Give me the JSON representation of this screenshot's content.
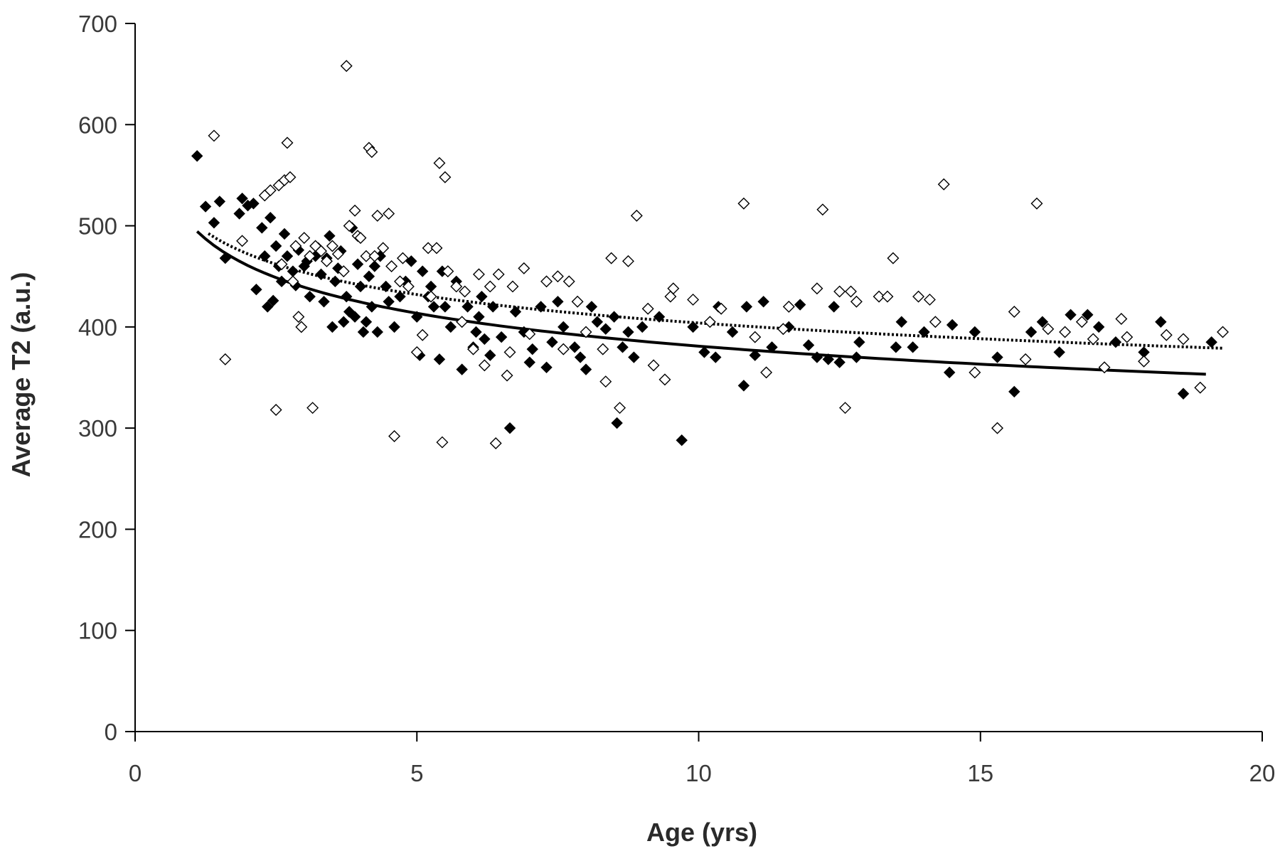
{
  "chart_data": {
    "type": "scatter",
    "title": "",
    "xlabel": "Age (yrs)",
    "ylabel": "Average T2 (a.u.)",
    "xlim": [
      0,
      20
    ],
    "ylim": [
      0,
      700
    ],
    "x_ticks": [
      0,
      5,
      10,
      15,
      20
    ],
    "y_ticks": [
      0,
      100,
      200,
      300,
      400,
      500,
      600,
      700
    ],
    "x_tick_labels": [
      "0",
      "5",
      "10",
      "15",
      "20"
    ],
    "y_tick_labels": [
      "0",
      "100",
      "200",
      "300",
      "400",
      "500",
      "600",
      "700"
    ],
    "grid": false,
    "legend": "none",
    "series": [
      {
        "marker": "filled-diamond",
        "color": "#000000",
        "points": [
          [
            1.1,
            569
          ],
          [
            1.25,
            519
          ],
          [
            1.4,
            503
          ],
          [
            1.5,
            524
          ],
          [
            1.6,
            468
          ],
          [
            1.85,
            512
          ],
          [
            1.9,
            527
          ],
          [
            2.0,
            520
          ],
          [
            2.1,
            522
          ],
          [
            2.15,
            437
          ],
          [
            2.25,
            498
          ],
          [
            2.3,
            470
          ],
          [
            2.35,
            420
          ],
          [
            2.4,
            508
          ],
          [
            2.45,
            426
          ],
          [
            2.5,
            480
          ],
          [
            2.55,
            460
          ],
          [
            2.6,
            445
          ],
          [
            2.65,
            492
          ],
          [
            2.7,
            470
          ],
          [
            2.8,
            455
          ],
          [
            2.85,
            441
          ],
          [
            2.9,
            476
          ],
          [
            3.0,
            460
          ],
          [
            3.05,
            465
          ],
          [
            3.1,
            430
          ],
          [
            3.2,
            470
          ],
          [
            3.25,
            478
          ],
          [
            3.3,
            452
          ],
          [
            3.35,
            425
          ],
          [
            3.4,
            468
          ],
          [
            3.45,
            490
          ],
          [
            3.5,
            400
          ],
          [
            3.55,
            445
          ],
          [
            3.6,
            458
          ],
          [
            3.65,
            475
          ],
          [
            3.7,
            405
          ],
          [
            3.75,
            430
          ],
          [
            3.8,
            415
          ],
          [
            3.85,
            498
          ],
          [
            3.9,
            410
          ],
          [
            3.95,
            462
          ],
          [
            4.0,
            440
          ],
          [
            4.05,
            395
          ],
          [
            4.1,
            405
          ],
          [
            4.15,
            450
          ],
          [
            4.2,
            420
          ],
          [
            4.25,
            460
          ],
          [
            4.3,
            395
          ],
          [
            4.35,
            470
          ],
          [
            4.45,
            440
          ],
          [
            4.5,
            425
          ],
          [
            4.55,
            460
          ],
          [
            4.6,
            400
          ],
          [
            4.7,
            430
          ],
          [
            4.8,
            445
          ],
          [
            4.9,
            465
          ],
          [
            5.0,
            410
          ],
          [
            5.05,
            372
          ],
          [
            5.1,
            455
          ],
          [
            5.2,
            430
          ],
          [
            5.25,
            440
          ],
          [
            5.3,
            420
          ],
          [
            5.4,
            368
          ],
          [
            5.45,
            455
          ],
          [
            5.5,
            420
          ],
          [
            5.6,
            400
          ],
          [
            5.7,
            445
          ],
          [
            5.8,
            358
          ],
          [
            5.9,
            420
          ],
          [
            6.0,
            380
          ],
          [
            6.05,
            395
          ],
          [
            6.1,
            410
          ],
          [
            6.15,
            430
          ],
          [
            6.2,
            388
          ],
          [
            6.3,
            372
          ],
          [
            6.35,
            420
          ],
          [
            6.5,
            390
          ],
          [
            6.65,
            300
          ],
          [
            6.75,
            415
          ],
          [
            6.9,
            395
          ],
          [
            7.0,
            365
          ],
          [
            7.05,
            378
          ],
          [
            7.2,
            420
          ],
          [
            7.3,
            360
          ],
          [
            7.4,
            385
          ],
          [
            7.5,
            425
          ],
          [
            7.6,
            400
          ],
          [
            7.8,
            380
          ],
          [
            7.9,
            370
          ],
          [
            8.0,
            358
          ],
          [
            8.1,
            420
          ],
          [
            8.2,
            405
          ],
          [
            8.35,
            398
          ],
          [
            8.5,
            410
          ],
          [
            8.55,
            305
          ],
          [
            8.65,
            380
          ],
          [
            8.75,
            395
          ],
          [
            8.85,
            370
          ],
          [
            9.0,
            400
          ],
          [
            9.3,
            410
          ],
          [
            9.7,
            288
          ],
          [
            9.9,
            400
          ],
          [
            10.1,
            375
          ],
          [
            10.3,
            370
          ],
          [
            10.35,
            420
          ],
          [
            10.6,
            395
          ],
          [
            10.8,
            342
          ],
          [
            10.85,
            420
          ],
          [
            11.0,
            372
          ],
          [
            11.15,
            425
          ],
          [
            11.3,
            380
          ],
          [
            11.6,
            400
          ],
          [
            11.8,
            422
          ],
          [
            11.95,
            382
          ],
          [
            12.1,
            370
          ],
          [
            12.3,
            368
          ],
          [
            12.4,
            420
          ],
          [
            12.5,
            365
          ],
          [
            12.8,
            370
          ],
          [
            12.85,
            385
          ],
          [
            13.2,
            430
          ],
          [
            13.5,
            380
          ],
          [
            13.6,
            405
          ],
          [
            13.8,
            380
          ],
          [
            14.0,
            395
          ],
          [
            14.45,
            355
          ],
          [
            14.5,
            402
          ],
          [
            14.9,
            395
          ],
          [
            15.3,
            370
          ],
          [
            15.6,
            336
          ],
          [
            15.9,
            395
          ],
          [
            16.1,
            405
          ],
          [
            16.4,
            375
          ],
          [
            16.6,
            412
          ],
          [
            16.9,
            412
          ],
          [
            17.1,
            400
          ],
          [
            17.4,
            385
          ],
          [
            17.9,
            375
          ],
          [
            18.2,
            405
          ],
          [
            18.6,
            334
          ],
          [
            19.1,
            385
          ]
        ]
      },
      {
        "marker": "open-diamond",
        "color": "#000000",
        "points": [
          [
            1.4,
            589
          ],
          [
            1.6,
            368
          ],
          [
            1.9,
            485
          ],
          [
            2.3,
            530
          ],
          [
            2.4,
            535
          ],
          [
            2.5,
            318
          ],
          [
            2.55,
            540
          ],
          [
            2.6,
            462
          ],
          [
            2.65,
            545
          ],
          [
            2.7,
            582
          ],
          [
            2.75,
            548
          ],
          [
            2.8,
            445
          ],
          [
            2.85,
            480
          ],
          [
            2.9,
            410
          ],
          [
            2.95,
            400
          ],
          [
            3.0,
            488
          ],
          [
            3.1,
            470
          ],
          [
            3.15,
            320
          ],
          [
            3.2,
            480
          ],
          [
            3.3,
            475
          ],
          [
            3.4,
            465
          ],
          [
            3.5,
            480
          ],
          [
            3.6,
            472
          ],
          [
            3.7,
            455
          ],
          [
            3.75,
            658
          ],
          [
            3.8,
            500
          ],
          [
            3.9,
            515
          ],
          [
            3.95,
            490
          ],
          [
            4.0,
            488
          ],
          [
            4.1,
            470
          ],
          [
            4.15,
            577
          ],
          [
            4.2,
            573
          ],
          [
            4.25,
            470
          ],
          [
            4.3,
            510
          ],
          [
            4.4,
            478
          ],
          [
            4.5,
            512
          ],
          [
            4.55,
            460
          ],
          [
            4.6,
            292
          ],
          [
            4.7,
            445
          ],
          [
            4.75,
            468
          ],
          [
            4.85,
            440
          ],
          [
            5.0,
            375
          ],
          [
            5.1,
            392
          ],
          [
            5.2,
            478
          ],
          [
            5.25,
            430
          ],
          [
            5.35,
            478
          ],
          [
            5.4,
            562
          ],
          [
            5.45,
            286
          ],
          [
            5.5,
            548
          ],
          [
            5.55,
            455
          ],
          [
            5.7,
            440
          ],
          [
            5.8,
            405
          ],
          [
            5.85,
            435
          ],
          [
            6.0,
            378
          ],
          [
            6.1,
            452
          ],
          [
            6.2,
            362
          ],
          [
            6.3,
            440
          ],
          [
            6.4,
            285
          ],
          [
            6.45,
            452
          ],
          [
            6.6,
            352
          ],
          [
            6.65,
            375
          ],
          [
            6.7,
            440
          ],
          [
            6.9,
            458
          ],
          [
            7.0,
            393
          ],
          [
            7.3,
            445
          ],
          [
            7.5,
            450
          ],
          [
            7.6,
            378
          ],
          [
            7.7,
            445
          ],
          [
            7.85,
            425
          ],
          [
            8.0,
            395
          ],
          [
            8.3,
            378
          ],
          [
            8.35,
            346
          ],
          [
            8.45,
            468
          ],
          [
            8.6,
            320
          ],
          [
            8.75,
            465
          ],
          [
            8.9,
            510
          ],
          [
            9.1,
            418
          ],
          [
            9.2,
            362
          ],
          [
            9.4,
            348
          ],
          [
            9.5,
            430
          ],
          [
            9.55,
            438
          ],
          [
            9.9,
            427
          ],
          [
            10.2,
            405
          ],
          [
            10.4,
            418
          ],
          [
            10.8,
            522
          ],
          [
            11.0,
            390
          ],
          [
            11.2,
            355
          ],
          [
            11.5,
            398
          ],
          [
            11.6,
            420
          ],
          [
            12.1,
            438
          ],
          [
            12.2,
            516
          ],
          [
            12.5,
            435
          ],
          [
            12.6,
            320
          ],
          [
            12.7,
            435
          ],
          [
            12.8,
            425
          ],
          [
            13.2,
            430
          ],
          [
            13.35,
            430
          ],
          [
            13.45,
            468
          ],
          [
            13.9,
            430
          ],
          [
            14.1,
            427
          ],
          [
            14.2,
            405
          ],
          [
            14.35,
            541
          ],
          [
            14.9,
            355
          ],
          [
            15.3,
            300
          ],
          [
            15.6,
            415
          ],
          [
            15.8,
            368
          ],
          [
            16.0,
            522
          ],
          [
            16.2,
            398
          ],
          [
            16.5,
            395
          ],
          [
            16.8,
            405
          ],
          [
            17.0,
            388
          ],
          [
            17.2,
            360
          ],
          [
            17.5,
            408
          ],
          [
            17.6,
            390
          ],
          [
            17.9,
            366
          ],
          [
            18.3,
            392
          ],
          [
            18.6,
            388
          ],
          [
            18.9,
            340
          ],
          [
            19.3,
            395
          ]
        ]
      }
    ],
    "trendlines": [
      {
        "style": "solid",
        "color": "#000000",
        "a": 500,
        "b": -0.118,
        "x_range": [
          1.1,
          19.0
        ]
      },
      {
        "style": "dotted",
        "color": "#000000",
        "a": 505,
        "b": -0.097,
        "x_range": [
          1.3,
          19.3
        ]
      }
    ]
  }
}
